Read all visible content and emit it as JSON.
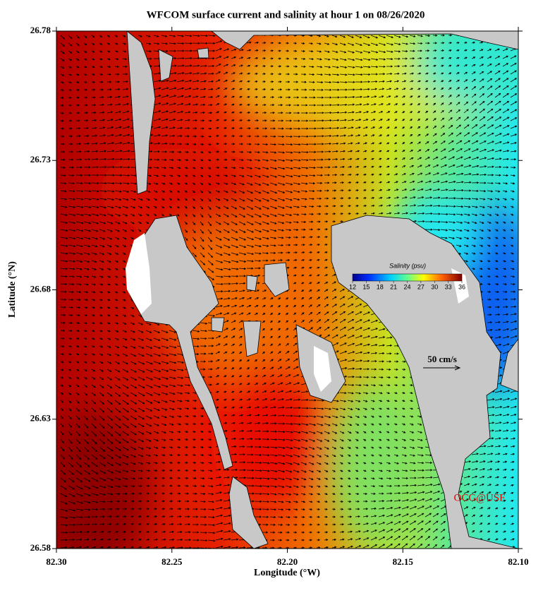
{
  "chart_data": {
    "type": "map",
    "title": "WFCOM surface current and salinity at hour 1 on 08/26/2020",
    "xlabel": "Longitude (°W)",
    "ylabel": "Latitude (°N)",
    "xlim": [
      82.3,
      82.1
    ],
    "ylim": [
      26.58,
      26.78
    ],
    "xticks": [
      {
        "value": 82.3,
        "label": "82.30"
      },
      82.25,
      {
        "value": 82.2,
        "label": "82.20"
      },
      82.15,
      {
        "value": 82.1,
        "label": "82.10"
      }
    ],
    "yticks": [
      26.58,
      26.63,
      26.68,
      26.73,
      26.78
    ],
    "colorbar": {
      "label": "Salinity (psu)",
      "lim": [
        12,
        36
      ],
      "ticks": [
        12,
        15,
        18,
        21,
        24,
        27,
        30,
        33,
        36
      ]
    },
    "scale_label": "50 cm/s",
    "credit": "OCG@USF"
  }
}
